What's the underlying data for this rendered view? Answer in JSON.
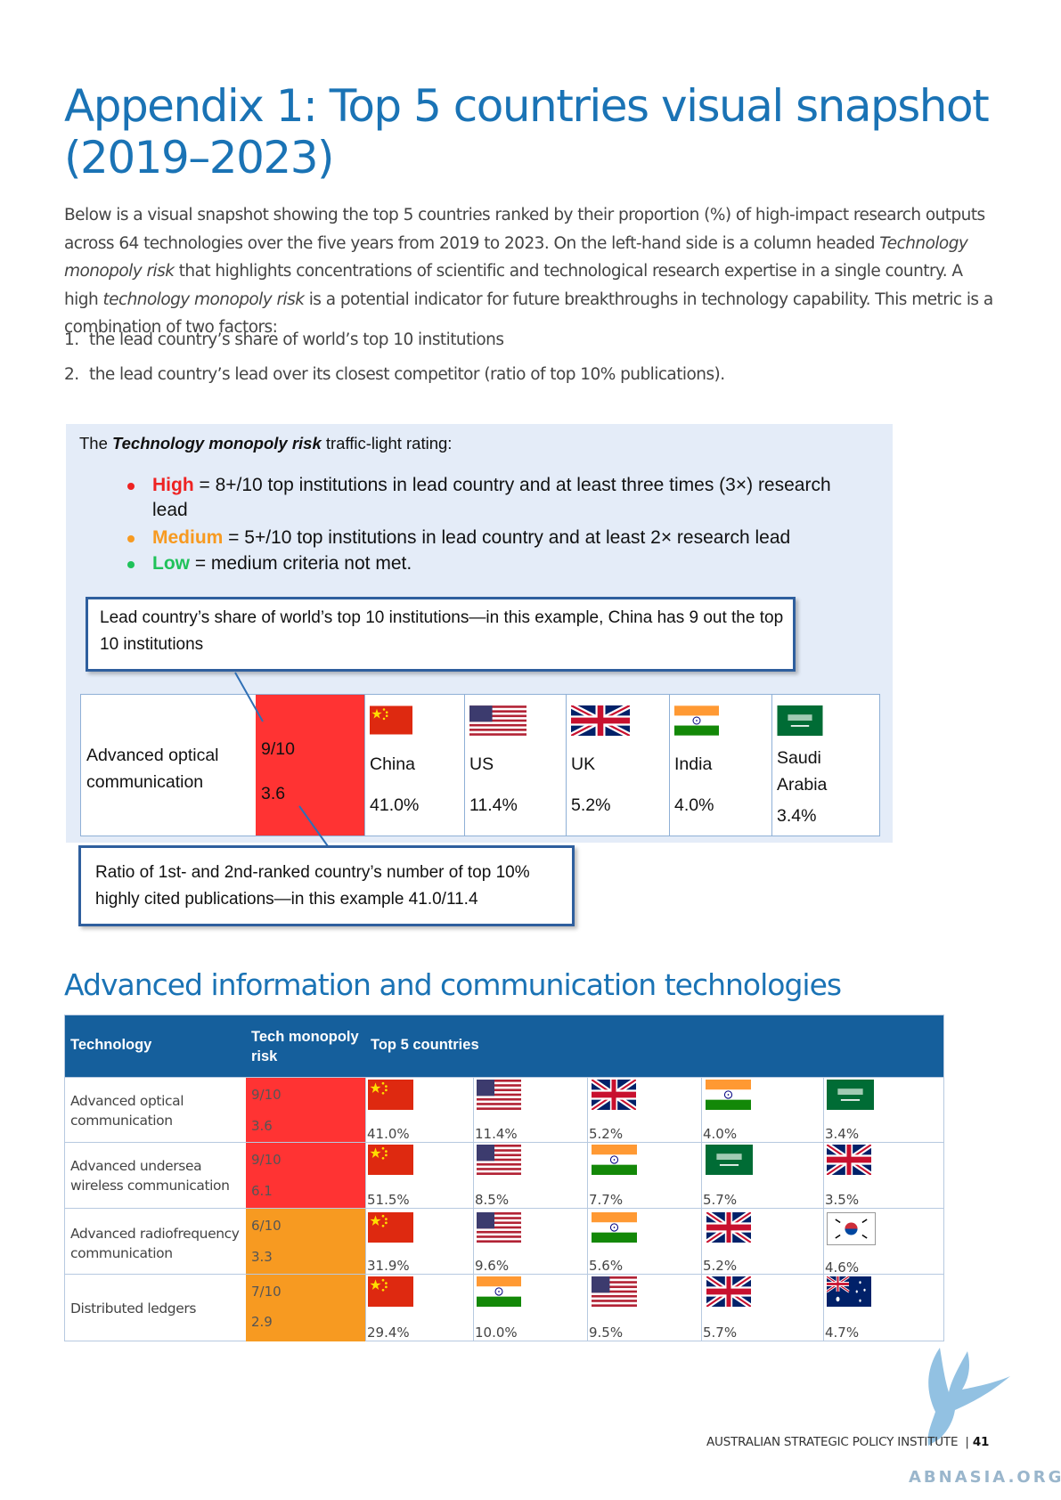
{
  "page": {
    "title": "Appendix 1: Top 5 countries visual snapshot (2019–2023)",
    "intro_parts": [
      "Below is a visual snapshot showing the top 5 countries ranked by their proportion (%) of high-impact research outputs across 64 technologies over the five years from 2019 to 2023. On the left-hand side is a column headed ",
      "Technology monopoly risk",
      " that highlights concentrations of scientific and technological research expertise in a single country. A high ",
      "technology monopoly risk",
      " is a potential indicator for future breakthroughs in technology capability. This metric is a combination of two factors:"
    ],
    "list": [
      {
        "num": "1.",
        "text": "the lead country’s share of world’s top 10 institutions"
      },
      {
        "num": "2.",
        "text": "the lead country’s lead over its closest competitor (ratio of top 10% publications)."
      }
    ]
  },
  "explainer": {
    "heading_pre": "The ",
    "heading_bold": "Technology monopoly risk",
    "heading_post": " traffic-light rating:",
    "ratings": [
      {
        "label": "High",
        "text": " = 8+/10 top institutions in lead country and at least three times (3×) research lead",
        "color": "#ee2222"
      },
      {
        "label": "Medium",
        "text": " = 5+/10 top institutions in lead country and at least 2× research lead",
        "color": "#f79a21"
      },
      {
        "label": "Low",
        "text": " = medium criteria not met.",
        "color": "#1fc25a"
      }
    ],
    "callout_top": "Lead country’s share of world’s top 10 institutions—in this example, China has 9 out the top 10 institutions",
    "callout_bottom": "Ratio of 1st- and 2nd-ranked country’s number of top 10% highly cited publications—in this example 41.0/11.4",
    "example": {
      "technology": "Advanced optical communication",
      "institutions": "9/10",
      "ratio": "3.6",
      "risk_color": "#ff3333",
      "countries": [
        {
          "name": "China",
          "share": "41.0%",
          "flag": "china"
        },
        {
          "name": "US",
          "share": "11.4%",
          "flag": "us"
        },
        {
          "name": "UK",
          "share": "5.2%",
          "flag": "uk"
        },
        {
          "name": "India",
          "share": "4.0%",
          "flag": "india"
        },
        {
          "name": "Saudi Arabia",
          "share": "3.4%",
          "flag": "saudi"
        }
      ]
    }
  },
  "section": {
    "heading": "Advanced information and communication technologies",
    "table": {
      "headers": {
        "technology": "Technology",
        "risk": "Tech monopoly risk",
        "countries": "Top 5 countries"
      },
      "rows": [
        {
          "technology": "Advanced optical communication",
          "institutions": "9/10",
          "ratio": "3.6",
          "risk_level": "High",
          "risk_color": "#ff3333",
          "countries": [
            {
              "flag": "china",
              "share": "41.0%"
            },
            {
              "flag": "us",
              "share": "11.4%"
            },
            {
              "flag": "uk",
              "share": "5.2%"
            },
            {
              "flag": "india",
              "share": "4.0%"
            },
            {
              "flag": "saudi",
              "share": "3.4%"
            }
          ]
        },
        {
          "technology": "Advanced undersea wireless communication",
          "institutions": "9/10",
          "ratio": "6.1",
          "risk_level": "High",
          "risk_color": "#ff3333",
          "countries": [
            {
              "flag": "china",
              "share": "51.5%"
            },
            {
              "flag": "us",
              "share": "8.5%"
            },
            {
              "flag": "india",
              "share": "7.7%"
            },
            {
              "flag": "saudi",
              "share": "5.7%"
            },
            {
              "flag": "uk",
              "share": "3.5%"
            }
          ]
        },
        {
          "technology": "Advanced radiofrequency communication",
          "institutions": "6/10",
          "ratio": "3.3",
          "risk_level": "Medium",
          "risk_color": "#f79a21",
          "countries": [
            {
              "flag": "china",
              "share": "31.9%"
            },
            {
              "flag": "us",
              "share": "9.6%"
            },
            {
              "flag": "india",
              "share": "5.6%"
            },
            {
              "flag": "uk",
              "share": "5.2%"
            },
            {
              "flag": "korea",
              "share": "4.6%"
            }
          ]
        },
        {
          "technology": "Distributed ledgers",
          "institutions": "7/10",
          "ratio": "2.9",
          "risk_level": "Medium",
          "risk_color": "#f79a21",
          "countries": [
            {
              "flag": "china",
              "share": "29.4%"
            },
            {
              "flag": "india",
              "share": "10.0%"
            },
            {
              "flag": "us",
              "share": "9.5%"
            },
            {
              "flag": "uk",
              "share": "5.7%"
            },
            {
              "flag": "australia",
              "share": "4.7%"
            }
          ]
        }
      ]
    }
  },
  "footer": {
    "org": "AUSTRALIAN STRATEGIC POLICY INSTITUTE",
    "separator": "|",
    "page_number": "41"
  },
  "watermark": "ABNASIA.ORG"
}
